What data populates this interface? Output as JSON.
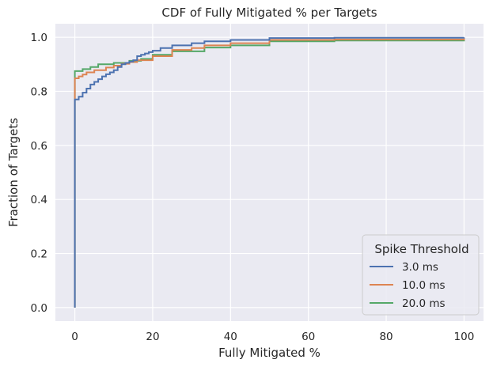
{
  "chart_data": {
    "type": "line",
    "title": "CDF of Fully Mitigated % per Targets",
    "xlabel": "Fully Mitigated %",
    "ylabel": "Fraction of Targets",
    "xlim": [
      -5,
      105
    ],
    "ylim": [
      -0.05,
      1.05
    ],
    "x_ticks": [
      0,
      20,
      40,
      60,
      80,
      100
    ],
    "y_ticks": [
      0.0,
      0.2,
      0.4,
      0.6,
      0.8,
      1.0
    ],
    "grid": true,
    "legend": {
      "title": "Spike Threshold",
      "placement": "lower-right"
    },
    "series": [
      {
        "name": "3.0 ms",
        "color": "#4c72b0",
        "x": [
          0,
          0,
          1,
          2,
          3,
          4,
          5,
          6,
          7,
          8,
          9,
          10,
          11,
          12,
          13,
          14,
          15,
          16,
          17,
          18,
          19,
          20,
          22,
          25,
          30,
          33.3,
          40,
          50,
          66.7,
          100
        ],
        "y": [
          0,
          0.77,
          0.78,
          0.795,
          0.81,
          0.825,
          0.835,
          0.845,
          0.855,
          0.863,
          0.87,
          0.878,
          0.89,
          0.9,
          0.905,
          0.91,
          0.915,
          0.93,
          0.935,
          0.94,
          0.945,
          0.95,
          0.96,
          0.97,
          0.978,
          0.985,
          0.99,
          0.997,
          0.998,
          0.999
        ]
      },
      {
        "name": "10.0 ms",
        "color": "#dd8452",
        "x": [
          0,
          0,
          1,
          2,
          3,
          5,
          8,
          10,
          12,
          14,
          16,
          20,
          25,
          30,
          33.3,
          40,
          50,
          66.7,
          100
        ],
        "y": [
          0,
          0.848,
          0.855,
          0.862,
          0.87,
          0.878,
          0.888,
          0.895,
          0.902,
          0.908,
          0.915,
          0.93,
          0.953,
          0.96,
          0.97,
          0.978,
          0.99,
          0.992,
          0.995
        ]
      },
      {
        "name": "20.0 ms",
        "color": "#55a868",
        "x": [
          0,
          0,
          2,
          4,
          6,
          10,
          14,
          17,
          20,
          25,
          33.3,
          40,
          50,
          66.7,
          100
        ],
        "y": [
          0,
          0.875,
          0.882,
          0.89,
          0.9,
          0.905,
          0.913,
          0.92,
          0.935,
          0.948,
          0.962,
          0.97,
          0.985,
          0.988,
          0.99
        ]
      }
    ]
  }
}
